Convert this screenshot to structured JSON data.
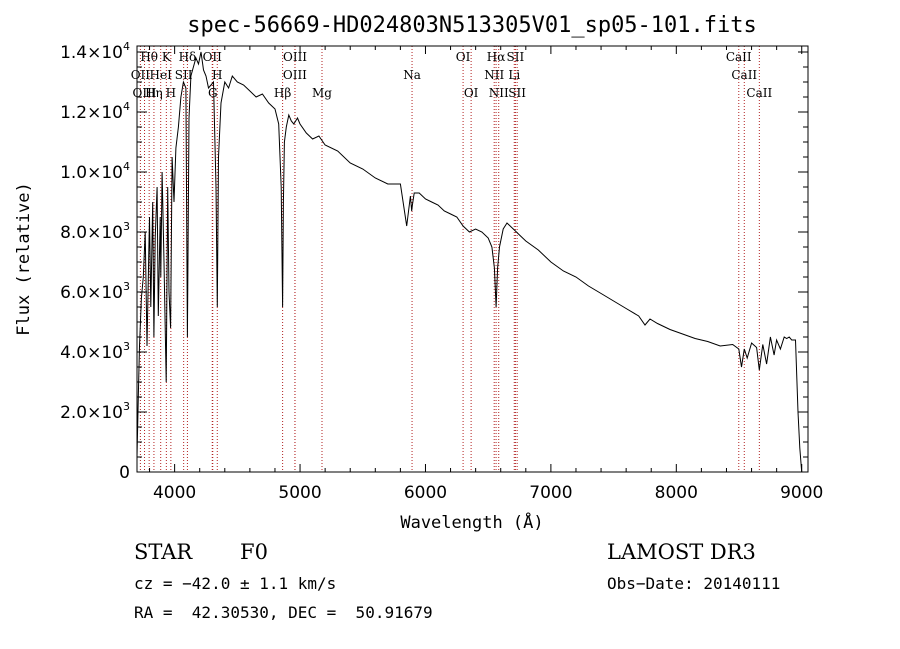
{
  "chart_data": {
    "type": "line",
    "title": "spec-56669-HD024803N513305V01_sp05-101.fits",
    "xlabel": "Wavelength (Å)",
    "ylabel": "Flux (relative)",
    "xlim": [
      3700,
      9050
    ],
    "ylim": [
      0,
      14200
    ],
    "x_ticks": [
      4000,
      5000,
      6000,
      7000,
      8000,
      9000
    ],
    "x_tick_labels": [
      "4000",
      "5000",
      "6000",
      "7000",
      "8000",
      "9000"
    ],
    "y_ticks": [
      0,
      2000,
      4000,
      6000,
      8000,
      10000,
      12000,
      14000
    ],
    "y_tick_labels": [
      {
        "mant": "0",
        "exp": ""
      },
      {
        "mant": "2.0×10",
        "exp": "3"
      },
      {
        "mant": "4.0×10",
        "exp": "3"
      },
      {
        "mant": "6.0×10",
        "exp": "3"
      },
      {
        "mant": "8.0×10",
        "exp": "3"
      },
      {
        "mant": "1.0×10",
        "exp": "4"
      },
      {
        "mant": "1.2×10",
        "exp": "4"
      },
      {
        "mant": "1.4×10",
        "exp": "4"
      }
    ],
    "series": [
      {
        "name": "spectrum",
        "x": [
          3700,
          3710,
          3720,
          3735,
          3750,
          3765,
          3780,
          3795,
          3800,
          3810,
          3825,
          3835,
          3845,
          3860,
          3870,
          3885,
          3890,
          3900,
          3915,
          3933,
          3945,
          3955,
          3968,
          3980,
          3995,
          4010,
          4030,
          4050,
          4070,
          4090,
          4102,
          4115,
          4130,
          4150,
          4170,
          4190,
          4210,
          4230,
          4250,
          4270,
          4290,
          4310,
          4330,
          4340,
          4350,
          4370,
          4400,
          4430,
          4460,
          4500,
          4550,
          4600,
          4650,
          4700,
          4750,
          4800,
          4830,
          4850,
          4855,
          4861,
          4867,
          4875,
          4890,
          4910,
          4930,
          4950,
          4980,
          5000,
          5050,
          5100,
          5150,
          5200,
          5300,
          5400,
          5500,
          5600,
          5700,
          5800,
          5850,
          5880,
          5890,
          5896,
          5910,
          5950,
          6000,
          6050,
          6100,
          6150,
          6200,
          6250,
          6300,
          6350,
          6400,
          6450,
          6500,
          6530,
          6550,
          6563,
          6575,
          6590,
          6620,
          6650,
          6700,
          6750,
          6800,
          6900,
          7000,
          7100,
          7200,
          7300,
          7400,
          7500,
          7600,
          7700,
          7750,
          7770,
          7790,
          7850,
          7950,
          8050,
          8150,
          8250,
          8350,
          8450,
          8498,
          8520,
          8542,
          8565,
          8600,
          8640,
          8662,
          8690,
          8720,
          8750,
          8780,
          8800,
          8830,
          8860,
          8880,
          8900,
          8920,
          8950,
          8970,
          8985,
          9000
        ],
        "y": [
          500,
          2500,
          4200,
          5800,
          6500,
          8000,
          4200,
          7500,
          8500,
          5500,
          9000,
          4500,
          7800,
          9500,
          5200,
          8500,
          6500,
          10000,
          7000,
          3000,
          9500,
          6000,
          4800,
          10500,
          9000,
          10800,
          11500,
          12500,
          13000,
          12800,
          4500,
          11800,
          13200,
          13500,
          13800,
          13600,
          14000,
          13400,
          13200,
          12800,
          12900,
          13000,
          9500,
          5500,
          10500,
          12300,
          13000,
          12800,
          13200,
          13000,
          12900,
          12700,
          12500,
          12600,
          12300,
          12100,
          11600,
          9500,
          7500,
          5500,
          9000,
          11000,
          11500,
          11900,
          11700,
          11600,
          11800,
          11600,
          11300,
          11100,
          11200,
          10900,
          10700,
          10300,
          10100,
          9800,
          9600,
          9600,
          8200,
          9200,
          8700,
          8900,
          9300,
          9300,
          9100,
          9000,
          8900,
          8700,
          8600,
          8500,
          8200,
          8000,
          8100,
          8000,
          7800,
          7500,
          6800,
          5500,
          6800,
          7500,
          8100,
          8300,
          8100,
          7900,
          7700,
          7400,
          7000,
          6700,
          6500,
          6200,
          5950,
          5700,
          5450,
          5200,
          4900,
          5000,
          5100,
          4950,
          4750,
          4600,
          4450,
          4350,
          4200,
          4250,
          4100,
          3500,
          4100,
          3800,
          4300,
          4150,
          3400,
          4250,
          3600,
          4500,
          3900,
          4400,
          4100,
          4500,
          4450,
          4500,
          4400,
          4400,
          2000,
          800,
          0
        ]
      }
    ],
    "line_markers": [
      {
        "label": "Hθ",
        "wl": 3797,
        "row": 0
      },
      {
        "label": "K",
        "wl": 3934,
        "row": 0
      },
      {
        "label": "Hδ",
        "wl": 4102,
        "row": 0
      },
      {
        "label": "OII",
        "wl": 4300,
        "row": 0
      },
      {
        "label": "OIII",
        "wl": 4960,
        "row": 0
      },
      {
        "label": "OI",
        "wl": 6300,
        "row": 0
      },
      {
        "label": "Hα",
        "wl": 6563,
        "row": 0
      },
      {
        "label": "SII",
        "wl": 6717,
        "row": 0
      },
      {
        "label": "CaII",
        "wl": 8498,
        "row": 0
      },
      {
        "label": "OII",
        "wl": 3727,
        "row": 1
      },
      {
        "label": "HeI",
        "wl": 3889,
        "row": 1
      },
      {
        "label": "SII",
        "wl": 4072,
        "row": 1
      },
      {
        "label": "H",
        "wl": 4340,
        "row": 1
      },
      {
        "label": "OIII",
        "wl": 4959,
        "row": 1
      },
      {
        "label": "Na",
        "wl": 5893,
        "row": 1
      },
      {
        "label": "NII",
        "wl": 6548,
        "row": 1
      },
      {
        "label": "Li",
        "wl": 6708,
        "row": 1
      },
      {
        "label": "CaII",
        "wl": 8542,
        "row": 1
      },
      {
        "label": "OIII",
        "wl": 3760,
        "row": 2
      },
      {
        "label": "Hη",
        "wl": 3835,
        "row": 2
      },
      {
        "label": "H",
        "wl": 3970,
        "row": 2
      },
      {
        "label": "G",
        "wl": 4304,
        "row": 2
      },
      {
        "label": "Hβ",
        "wl": 4861,
        "row": 2
      },
      {
        "label": "Mg",
        "wl": 5175,
        "row": 2
      },
      {
        "label": "OI",
        "wl": 6364,
        "row": 2
      },
      {
        "label": "NII",
        "wl": 6584,
        "row": 2
      },
      {
        "label": "SII",
        "wl": 6731,
        "row": 2
      },
      {
        "label": "CaII",
        "wl": 8662,
        "row": 2
      }
    ]
  },
  "info": {
    "object_class": "STAR",
    "subclass": "F0",
    "survey": "LAMOST DR3",
    "cz": "cz = −42.0 ± 1.1 km/s",
    "obs_date": "Obs−Date: 20140111",
    "radec": "RA =  42.30530, DEC =  50.91679"
  },
  "colors": {
    "marker": "#b22222",
    "line": "#000000"
  }
}
